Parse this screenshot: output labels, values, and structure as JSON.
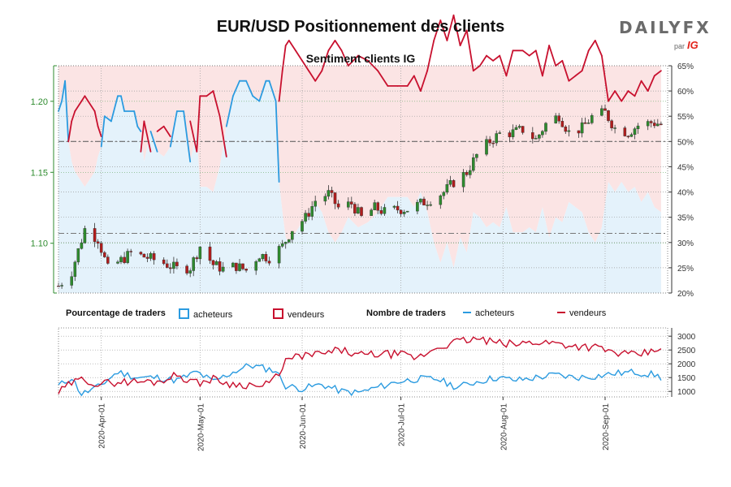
{
  "header": {
    "title": "EUR/USD Positionnement des clients",
    "subtitle": "Sentiment clients IG",
    "logo_brand": "DAILYFX",
    "logo_by": "par",
    "logo_ig": "IG"
  },
  "legend": {
    "pct_title": "Pourcentage de traders",
    "pct_buyers": "acheteurs",
    "pct_sellers": "vendeurs",
    "count_title": "Nombre de traders",
    "count_buyers": "acheteurs",
    "count_sellers": "vendeurs"
  },
  "colors": {
    "buyers_line": "#2b9be0",
    "sellers_line": "#c8102e",
    "buyers_fill": "#e4f2fb",
    "sellers_fill": "#fbe4e4",
    "candle_up": "#2e8b2e",
    "candle_down": "#b01c1c",
    "price_axis": "#2e8b2e"
  },
  "chart_data": [
    {
      "type": "candlestick+area",
      "title": "Sentiment clients IG",
      "price_axis": {
        "side": "left",
        "ylim": [
          1.065,
          1.225
        ],
        "ticks": [
          "1.10",
          "1.15",
          "1.20"
        ]
      },
      "pct_axis": {
        "side": "right",
        "ylim": [
          20,
          65
        ],
        "ticks": [
          "20%",
          "25%",
          "30%",
          "35%",
          "40%",
          "45%",
          "50%",
          "55%",
          "60%",
          "65%"
        ]
      },
      "x_axis": {
        "start": "2020-03-19",
        "end": "2020-09-20",
        "ticks": [
          "2020-Apr-01",
          "2020-May-01",
          "2020-Jun-01",
          "2020-Jul-01",
          "2020-Aug-01",
          "2020-Sep-01"
        ]
      },
      "reference_lines": {
        "pct": [
          50
        ],
        "price": [
          1.107
        ]
      },
      "price_anchors": [
        [
          "2020-03-19",
          1.07
        ],
        [
          "2020-03-23",
          1.08
        ],
        [
          "2020-03-27",
          1.11
        ],
        [
          "2020-03-31",
          1.103
        ],
        [
          "2020-04-03",
          1.082
        ],
        [
          "2020-04-07",
          1.088
        ],
        [
          "2020-04-10",
          1.093
        ],
        [
          "2020-04-15",
          1.09
        ],
        [
          "2020-04-20",
          1.086
        ],
        [
          "2020-04-24",
          1.082
        ],
        [
          "2020-04-28",
          1.083
        ],
        [
          "2020-05-01",
          1.098
        ],
        [
          "2020-05-05",
          1.085
        ],
        [
          "2020-05-08",
          1.082
        ],
        [
          "2020-05-12",
          1.084
        ],
        [
          "2020-05-15",
          1.081
        ],
        [
          "2020-05-19",
          1.092
        ],
        [
          "2020-05-22",
          1.09
        ],
        [
          "2020-05-26",
          1.098
        ],
        [
          "2020-05-29",
          1.11
        ],
        [
          "2020-06-02",
          1.118
        ],
        [
          "2020-06-05",
          1.13
        ],
        [
          "2020-06-09",
          1.135
        ],
        [
          "2020-06-12",
          1.125
        ],
        [
          "2020-06-16",
          1.128
        ],
        [
          "2020-06-19",
          1.118
        ],
        [
          "2020-06-23",
          1.125
        ],
        [
          "2020-06-26",
          1.122
        ],
        [
          "2020-06-30",
          1.124
        ],
        [
          "2020-07-03",
          1.124
        ],
        [
          "2020-07-07",
          1.128
        ],
        [
          "2020-07-10",
          1.131
        ],
        [
          "2020-07-14",
          1.136
        ],
        [
          "2020-07-17",
          1.143
        ],
        [
          "2020-07-21",
          1.15
        ],
        [
          "2020-07-24",
          1.162
        ],
        [
          "2020-07-28",
          1.172
        ],
        [
          "2020-07-31",
          1.177
        ],
        [
          "2020-08-04",
          1.178
        ],
        [
          "2020-08-07",
          1.18
        ],
        [
          "2020-08-11",
          1.173
        ],
        [
          "2020-08-14",
          1.184
        ],
        [
          "2020-08-18",
          1.19
        ],
        [
          "2020-08-21",
          1.178
        ],
        [
          "2020-08-25",
          1.181
        ],
        [
          "2020-08-28",
          1.189
        ],
        [
          "2020-09-01",
          1.192
        ],
        [
          "2020-09-04",
          1.181
        ],
        [
          "2020-09-08",
          1.178
        ],
        [
          "2020-09-11",
          1.183
        ],
        [
          "2020-09-15",
          1.185
        ],
        [
          "2020-09-18",
          1.184
        ]
      ],
      "series": [
        {
          "name": "acheteurs",
          "unit": "%",
          "points": [
            [
              "2020-03-19",
              56
            ],
            [
              "2020-03-20",
              58
            ],
            [
              "2020-03-21",
              62
            ],
            [
              "2020-03-22",
              50
            ],
            [
              "2020-03-23",
              46
            ],
            [
              "2020-03-24",
              44
            ],
            [
              "2020-03-26",
              42
            ],
            [
              "2020-03-27",
              41
            ],
            [
              "2020-03-28",
              42
            ],
            [
              "2020-03-30",
              44
            ],
            [
              "2020-03-31",
              47
            ],
            [
              "2020-04-01",
              49
            ],
            [
              "2020-04-02",
              55
            ],
            [
              "2020-04-04",
              54
            ],
            [
              "2020-04-06",
              59
            ],
            [
              "2020-04-07",
              59
            ],
            [
              "2020-04-08",
              56
            ],
            [
              "2020-04-11",
              56
            ],
            [
              "2020-04-12",
              53
            ],
            [
              "2020-04-13",
              52
            ],
            [
              "2020-04-14",
              46
            ],
            [
              "2020-04-16",
              52
            ],
            [
              "2020-04-18",
              48
            ],
            [
              "2020-04-20",
              47
            ],
            [
              "2020-04-22",
              49
            ],
            [
              "2020-04-24",
              56
            ],
            [
              "2020-04-26",
              56
            ],
            [
              "2020-04-28",
              46
            ],
            [
              "2020-04-30",
              52
            ],
            [
              "2020-05-01",
              41
            ],
            [
              "2020-05-03",
              41
            ],
            [
              "2020-05-05",
              40
            ],
            [
              "2020-05-07",
              45
            ],
            [
              "2020-05-09",
              53
            ],
            [
              "2020-05-11",
              59
            ],
            [
              "2020-05-13",
              62
            ],
            [
              "2020-05-15",
              62
            ],
            [
              "2020-05-17",
              59
            ],
            [
              "2020-05-19",
              58
            ],
            [
              "2020-05-21",
              62
            ],
            [
              "2020-05-22",
              62
            ],
            [
              "2020-05-24",
              58
            ],
            [
              "2020-05-25",
              42
            ],
            [
              "2020-05-26",
              36
            ],
            [
              "2020-05-27",
              31
            ],
            [
              "2020-05-28",
              30
            ],
            [
              "2020-05-30",
              32
            ],
            [
              "2020-06-01",
              34
            ],
            [
              "2020-06-03",
              36
            ],
            [
              "2020-06-05",
              38
            ],
            [
              "2020-06-07",
              36
            ],
            [
              "2020-06-09",
              32
            ],
            [
              "2020-06-11",
              30
            ],
            [
              "2020-06-13",
              32
            ],
            [
              "2020-06-15",
              35
            ],
            [
              "2020-06-18",
              33
            ],
            [
              "2020-06-21",
              34
            ],
            [
              "2020-06-24",
              36
            ],
            [
              "2020-06-27",
              39
            ],
            [
              "2020-06-30",
              39
            ],
            [
              "2020-07-03",
              39
            ],
            [
              "2020-07-05",
              37
            ],
            [
              "2020-07-07",
              40
            ],
            [
              "2020-07-09",
              36
            ],
            [
              "2020-07-11",
              30
            ],
            [
              "2020-07-13",
              26
            ],
            [
              "2020-07-15",
              30
            ],
            [
              "2020-07-17",
              25
            ],
            [
              "2020-07-19",
              31
            ],
            [
              "2020-07-21",
              28
            ],
            [
              "2020-07-23",
              36
            ],
            [
              "2020-07-25",
              35
            ],
            [
              "2020-07-27",
              33
            ],
            [
              "2020-07-29",
              34
            ],
            [
              "2020-07-31",
              33
            ],
            [
              "2020-08-02",
              37
            ],
            [
              "2020-08-04",
              32
            ],
            [
              "2020-08-07",
              32
            ],
            [
              "2020-08-09",
              33
            ],
            [
              "2020-08-11",
              32
            ],
            [
              "2020-08-13",
              37
            ],
            [
              "2020-08-15",
              31
            ],
            [
              "2020-08-17",
              35
            ],
            [
              "2020-08-19",
              34
            ],
            [
              "2020-08-21",
              38
            ],
            [
              "2020-08-23",
              37
            ],
            [
              "2020-08-25",
              36
            ],
            [
              "2020-08-27",
              32
            ],
            [
              "2020-08-29",
              30
            ],
            [
              "2020-08-31",
              33
            ],
            [
              "2020-09-02",
              42
            ],
            [
              "2020-09-04",
              40
            ],
            [
              "2020-09-06",
              42
            ],
            [
              "2020-09-08",
              40
            ],
            [
              "2020-09-10",
              41
            ],
            [
              "2020-09-12",
              38
            ],
            [
              "2020-09-14",
              40
            ],
            [
              "2020-09-16",
              37
            ],
            [
              "2020-09-18",
              36
            ]
          ]
        },
        {
          "name": "vendeurs",
          "unit": "%",
          "derived": "100 - acheteurs"
        }
      ]
    },
    {
      "type": "line",
      "title": "Nombre de traders",
      "x_axis": {
        "start": "2020-03-19",
        "end": "2020-09-20"
      },
      "ylim": [
        800,
        3300
      ],
      "ticks": [
        "1000",
        "1500",
        "2000",
        "2500",
        "3000"
      ],
      "series": [
        {
          "name": "acheteurs",
          "points": [
            [
              "2020-03-19",
              1200
            ],
            [
              "2020-03-23",
              1500
            ],
            [
              "2020-03-26",
              900
            ],
            [
              "2020-03-31",
              1150
            ],
            [
              "2020-04-06",
              1700
            ],
            [
              "2020-04-12",
              1500
            ],
            [
              "2020-04-18",
              1500
            ],
            [
              "2020-04-24",
              1400
            ],
            [
              "2020-04-30",
              1700
            ],
            [
              "2020-05-05",
              1350
            ],
            [
              "2020-05-11",
              1700
            ],
            [
              "2020-05-16",
              1950
            ],
            [
              "2020-05-20",
              1850
            ],
            [
              "2020-05-24",
              1750
            ],
            [
              "2020-05-27",
              1200
            ],
            [
              "2020-06-01",
              1100
            ],
            [
              "2020-06-07",
              1250
            ],
            [
              "2020-06-13",
              1000
            ],
            [
              "2020-06-18",
              950
            ],
            [
              "2020-06-24",
              1150
            ],
            [
              "2020-06-30",
              1350
            ],
            [
              "2020-07-06",
              1450
            ],
            [
              "2020-07-12",
              1450
            ],
            [
              "2020-07-18",
              1150
            ],
            [
              "2020-07-24",
              1350
            ],
            [
              "2020-07-30",
              1500
            ],
            [
              "2020-08-05",
              1400
            ],
            [
              "2020-08-11",
              1500
            ],
            [
              "2020-08-17",
              1600
            ],
            [
              "2020-08-23",
              1500
            ],
            [
              "2020-08-29",
              1550
            ],
            [
              "2020-09-04",
              1650
            ],
            [
              "2020-09-10",
              1700
            ],
            [
              "2020-09-16",
              1600
            ],
            [
              "2020-09-18",
              1500
            ]
          ]
        },
        {
          "name": "vendeurs",
          "points": [
            [
              "2020-03-19",
              950
            ],
            [
              "2020-03-23",
              1300
            ],
            [
              "2020-03-27",
              1450
            ],
            [
              "2020-03-31",
              1250
            ],
            [
              "2020-04-06",
              1350
            ],
            [
              "2020-04-12",
              1350
            ],
            [
              "2020-04-18",
              1350
            ],
            [
              "2020-04-24",
              1600
            ],
            [
              "2020-04-30",
              1300
            ],
            [
              "2020-05-05",
              1450
            ],
            [
              "2020-05-11",
              1250
            ],
            [
              "2020-05-16",
              1250
            ],
            [
              "2020-05-20",
              1150
            ],
            [
              "2020-05-24",
              1500
            ],
            [
              "2020-05-27",
              2100
            ],
            [
              "2020-06-01",
              2300
            ],
            [
              "2020-06-07",
              2350
            ],
            [
              "2020-06-13",
              2500
            ],
            [
              "2020-06-18",
              2300
            ],
            [
              "2020-06-24",
              2350
            ],
            [
              "2020-06-30",
              2350
            ],
            [
              "2020-07-06",
              2200
            ],
            [
              "2020-07-12",
              2600
            ],
            [
              "2020-07-18",
              2800
            ],
            [
              "2020-07-24",
              2900
            ],
            [
              "2020-07-30",
              2750
            ],
            [
              "2020-08-05",
              2700
            ],
            [
              "2020-08-11",
              2800
            ],
            [
              "2020-08-17",
              2750
            ],
            [
              "2020-08-23",
              2650
            ],
            [
              "2020-08-29",
              2600
            ],
            [
              "2020-09-04",
              2400
            ],
            [
              "2020-09-10",
              2300
            ],
            [
              "2020-09-16",
              2450
            ],
            [
              "2020-09-18",
              2650
            ]
          ]
        }
      ]
    }
  ]
}
